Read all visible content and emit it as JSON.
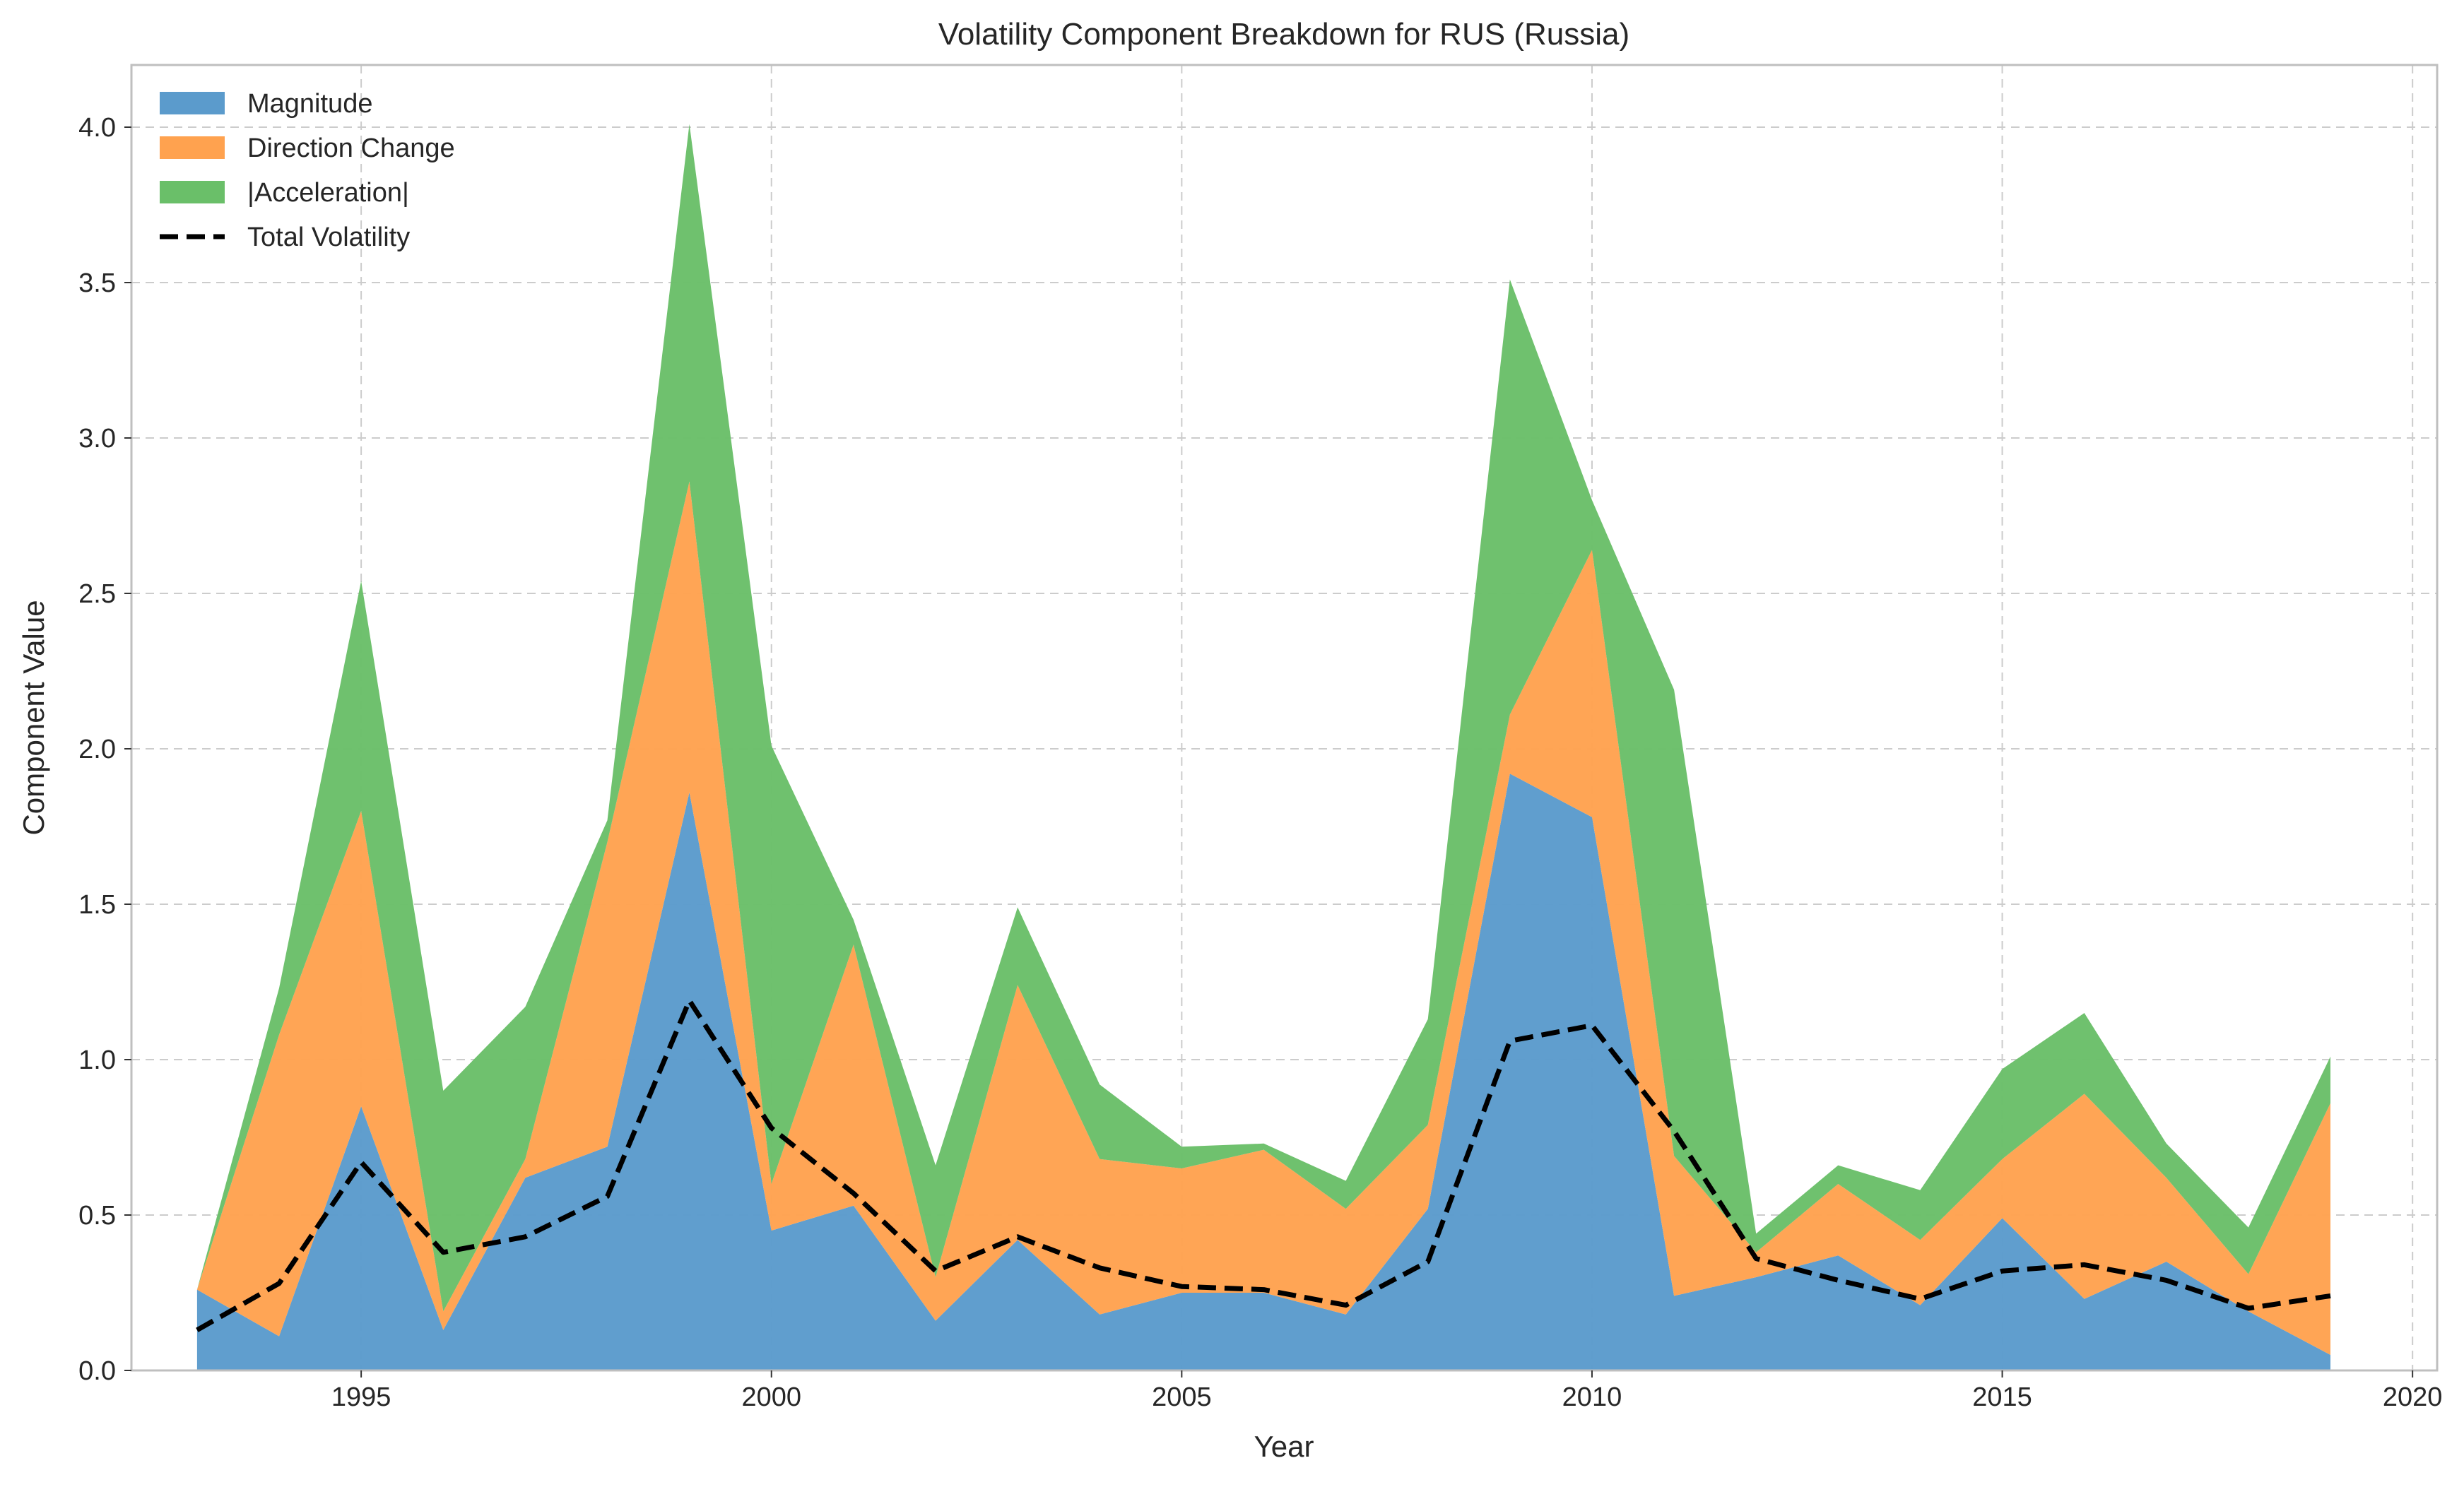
{
  "chart_data": {
    "type": "area",
    "title": "Volatility Component Breakdown for RUS (Russia)",
    "xlabel": "Year",
    "ylabel": "Component Value",
    "xlim": [
      1992.2,
      2020.3
    ],
    "ylim": [
      0,
      4.2
    ],
    "xticks": [
      1995,
      2000,
      2005,
      2010,
      2015,
      2020
    ],
    "yticks": [
      0.0,
      0.5,
      1.0,
      1.5,
      2.0,
      2.5,
      3.0,
      3.5,
      4.0
    ],
    "ytick_labels": [
      "0.0",
      "0.5",
      "1.0",
      "1.5",
      "2.0",
      "2.5",
      "3.0",
      "3.5",
      "4.0"
    ],
    "grid": true,
    "legend_position": "top-left",
    "x": [
      1993,
      1994,
      1995,
      1996,
      1997,
      1998,
      1999,
      2000,
      2001,
      2002,
      2003,
      2004,
      2005,
      2006,
      2007,
      2008,
      2009,
      2010,
      2011,
      2012,
      2013,
      2014,
      2015,
      2016,
      2017,
      2018,
      2019
    ],
    "stacked_series": [
      {
        "name": "Magnitude",
        "color": "#5b9bcc",
        "values": [
          0.26,
          0.11,
          0.85,
          0.13,
          0.62,
          0.72,
          1.86,
          0.45,
          0.53,
          0.16,
          0.42,
          0.18,
          0.25,
          0.25,
          0.18,
          0.52,
          1.92,
          1.78,
          0.24,
          0.3,
          0.37,
          0.21,
          0.49,
          0.23,
          0.35,
          0.19,
          0.05
        ]
      },
      {
        "name": "Direction Change",
        "color": "#ffa24f",
        "values": [
          0.0,
          0.97,
          0.95,
          0.06,
          0.06,
          0.98,
          1.0,
          0.15,
          0.84,
          0.14,
          0.82,
          0.5,
          0.4,
          0.46,
          0.34,
          0.27,
          0.19,
          0.86,
          0.45,
          0.08,
          0.23,
          0.21,
          0.19,
          0.66,
          0.27,
          0.12,
          0.81
        ]
      },
      {
        "name": "|Acceleration|",
        "color": "#6abf69",
        "values": [
          0.0,
          0.15,
          0.74,
          0.71,
          0.49,
          0.07,
          1.15,
          1.41,
          0.08,
          0.36,
          0.25,
          0.24,
          0.07,
          0.02,
          0.09,
          0.34,
          1.4,
          0.16,
          1.5,
          0.06,
          0.06,
          0.16,
          0.29,
          0.26,
          0.11,
          0.15,
          0.15
        ]
      }
    ],
    "line_series": {
      "name": "Total Volatility",
      "color": "#000000",
      "values": [
        0.13,
        0.28,
        0.67,
        0.38,
        0.43,
        0.56,
        1.19,
        0.78,
        0.57,
        0.32,
        0.43,
        0.33,
        0.27,
        0.26,
        0.21,
        0.35,
        1.06,
        1.11,
        0.77,
        0.36,
        0.29,
        0.23,
        0.32,
        0.34,
        0.29,
        0.2,
        0.24
      ]
    }
  }
}
